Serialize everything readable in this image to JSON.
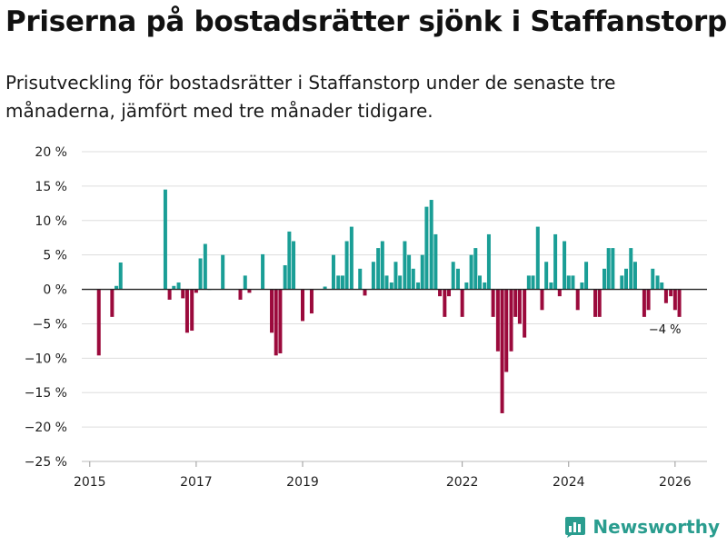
{
  "header": {
    "title": "Priserna på bostadsrätter sjönk i Staffanstorp",
    "subtitle": "Prisutveckling för bostadsrätter i Staffanstorp under de senaste tre månaderna, jämfört med tre månader tidigare."
  },
  "brand": {
    "name": "Newsworthy"
  },
  "colors": {
    "positive": "#1a9e96",
    "negative": "#9b0a3c",
    "grid": "#dddddd",
    "axis": "#222222",
    "brand": "#2a9d8f"
  },
  "chart_data": {
    "type": "bar",
    "title": "Priserna på bostadsrätter sjönk i Staffanstorp",
    "subtitle": "Prisutveckling för bostadsrätter i Staffanstorp under de senaste tre månaderna, jämfört med tre månader tidigare.",
    "xlabel": "",
    "ylabel": "",
    "ylim": [
      -25,
      20
    ],
    "y_ticks": [
      20,
      15,
      10,
      5,
      0,
      -5,
      -10,
      -15,
      -20,
      -25
    ],
    "y_tick_labels": [
      "20 %",
      "15 %",
      "10 %",
      "5 %",
      "0 %",
      "−5 %",
      "−10 %",
      "−15 %",
      "−20 %",
      "−25 %"
    ],
    "x_ticks": [
      2015,
      2017,
      2019,
      2022,
      2024,
      2026
    ],
    "x_tick_labels": [
      "2015",
      "2017",
      "2019",
      "2022",
      "2024",
      "2026"
    ],
    "xlim": [
      2014.85,
      2026.6
    ],
    "grid": true,
    "annotation": {
      "x": 2026.08,
      "y": -4,
      "label": "−4 %"
    },
    "series": [
      {
        "name": "Prisutveckling",
        "x": [
          2015.17,
          2015.42,
          2015.5,
          2015.58,
          2016.42,
          2016.5,
          2016.58,
          2016.67,
          2016.75,
          2016.83,
          2016.92,
          2017.0,
          2017.08,
          2017.17,
          2017.25,
          2017.5,
          2017.83,
          2017.92,
          2018.0,
          2018.25,
          2018.42,
          2018.5,
          2018.58,
          2018.67,
          2018.75,
          2018.83,
          2019.0,
          2019.17,
          2019.42,
          2019.58,
          2019.67,
          2019.75,
          2019.83,
          2019.92,
          2020.08,
          2020.17,
          2020.33,
          2020.42,
          2020.5,
          2020.58,
          2020.67,
          2020.75,
          2020.83,
          2020.92,
          2021.0,
          2021.08,
          2021.17,
          2021.25,
          2021.33,
          2021.42,
          2021.5,
          2021.58,
          2021.67,
          2021.75,
          2021.83,
          2021.92,
          2022.0,
          2022.08,
          2022.17,
          2022.25,
          2022.33,
          2022.42,
          2022.5,
          2022.58,
          2022.67,
          2022.75,
          2022.83,
          2022.92,
          2023.0,
          2023.08,
          2023.17,
          2023.25,
          2023.33,
          2023.42,
          2023.5,
          2023.58,
          2023.67,
          2023.75,
          2023.83,
          2023.92,
          2024.0,
          2024.08,
          2024.17,
          2024.25,
          2024.33,
          2024.5,
          2024.58,
          2024.67,
          2024.75,
          2024.83,
          2025.0,
          2025.08,
          2025.17,
          2025.25,
          2025.42,
          2025.5,
          2025.58,
          2025.67,
          2025.75,
          2025.83,
          2025.92,
          2026.0,
          2026.08
        ],
        "values": [
          -9.6,
          -4,
          0.5,
          3.9,
          14.5,
          -1.5,
          0.5,
          1,
          -1.3,
          -6.3,
          -6,
          -0.5,
          4.5,
          6.6,
          0,
          5,
          -1.5,
          2,
          -0.5,
          5.1,
          -6.3,
          -9.6,
          -9.3,
          3.5,
          8.4,
          7,
          -4.6,
          -3.5,
          0.4,
          5,
          2,
          2,
          7,
          9.1,
          3,
          -0.9,
          4,
          6,
          7,
          2,
          1,
          4,
          2,
          7,
          5,
          3,
          1,
          5,
          12,
          13,
          8,
          -1,
          -4,
          -1,
          4,
          3,
          -4,
          1,
          5,
          6,
          2,
          1,
          8,
          -4,
          -9,
          -18,
          -12,
          -9,
          -4,
          -5,
          -7,
          2,
          2,
          9.1,
          -3,
          4,
          1,
          8,
          -1,
          7,
          2,
          2,
          -3,
          1,
          4,
          -4,
          -4,
          3,
          6,
          6,
          2,
          3,
          6,
          4,
          -4,
          -3,
          3,
          2,
          1,
          -2,
          -1,
          -3,
          -4
        ]
      }
    ]
  }
}
